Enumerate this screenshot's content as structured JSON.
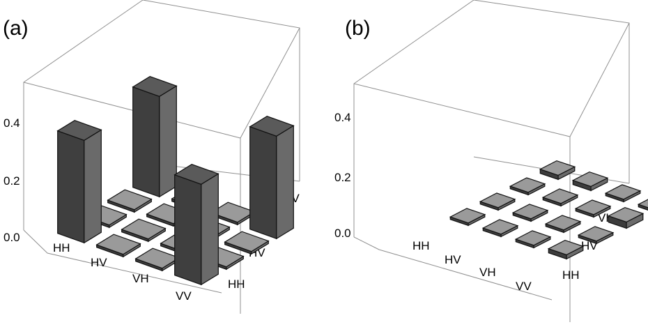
{
  "chart_data": [
    {
      "type": "bar3d",
      "panel_label": "(a)",
      "row_categories": [
        "HH",
        "HV",
        "VH",
        "VV"
      ],
      "col_categories": [
        "HH",
        "HV",
        "VH",
        "VV"
      ],
      "z_ticks": [
        "0.0",
        "0.2",
        "0.4"
      ],
      "zlim": [
        0,
        0.55
      ],
      "values": [
        [
          0.49,
          0.01,
          0.01,
          0.48
        ],
        [
          0.01,
          0.01,
          0.01,
          0.01
        ],
        [
          0.01,
          0.01,
          0.01,
          0.01
        ],
        [
          0.48,
          0.01,
          0.01,
          0.49
        ]
      ]
    },
    {
      "type": "bar3d",
      "panel_label": "(b)",
      "row_categories": [
        "HH",
        "HV",
        "VH",
        "VV"
      ],
      "col_categories": [
        "HH",
        "HV",
        "VH",
        "VV"
      ],
      "z_ticks": [
        "0.0",
        "0.2",
        "0.4"
      ],
      "zlim": [
        0,
        0.55
      ],
      "values": [
        [
          0.0,
          0.01,
          0.01,
          0.02
        ],
        [
          0.01,
          0.01,
          0.0,
          0.02
        ],
        [
          0.01,
          0.01,
          0.01,
          0.01
        ],
        [
          0.02,
          0.01,
          0.03,
          0.0
        ]
      ]
    }
  ]
}
